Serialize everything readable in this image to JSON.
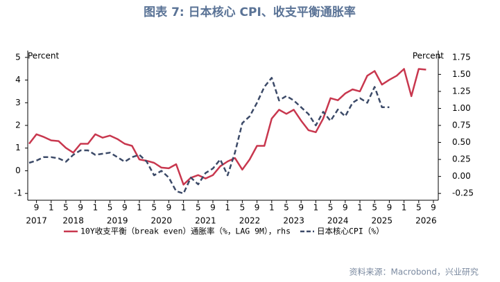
{
  "chart_data": {
    "type": "line",
    "title": "图表 7:  日本核心 CPI、收支平衡通胀率",
    "source": "资料来源：Macrobond，兴业研究",
    "ylabel": "Percent",
    "y2label": "Percent",
    "x": [
      "2017-07",
      "2017-09",
      "2017-11",
      "2018-01",
      "2018-03",
      "2018-05",
      "2018-07",
      "2018-09",
      "2018-11",
      "2019-01",
      "2019-03",
      "2019-05",
      "2019-07",
      "2019-09",
      "2019-11",
      "2020-01",
      "2020-03",
      "2020-05",
      "2020-07",
      "2020-09",
      "2020-11",
      "2021-01",
      "2021-03",
      "2021-05",
      "2021-07",
      "2021-09",
      "2021-11",
      "2022-01",
      "2022-03",
      "2022-05",
      "2022-07",
      "2022-09",
      "2022-11",
      "2023-01",
      "2023-03",
      "2023-05",
      "2023-07",
      "2023-09",
      "2023-11",
      "2024-01",
      "2024-03",
      "2024-05",
      "2024-07",
      "2024-09",
      "2024-11",
      "2025-01",
      "2025-03",
      "2025-05",
      "2025-07",
      "2025-09",
      "2025-11",
      "2026-01",
      "2026-03",
      "2026-05",
      "2026-07"
    ],
    "xticks": [
      {
        "value": "2017-09",
        "label": "9"
      },
      {
        "value": "2018-01",
        "label": "1"
      },
      {
        "value": "2018-05",
        "label": "5"
      },
      {
        "value": "2018-09",
        "label": "9"
      },
      {
        "value": "2019-01",
        "label": "1"
      },
      {
        "value": "2019-05",
        "label": "5"
      },
      {
        "value": "2019-09",
        "label": "9"
      },
      {
        "value": "2020-01",
        "label": "1"
      },
      {
        "value": "2020-05",
        "label": "5"
      },
      {
        "value": "2020-09",
        "label": "9"
      },
      {
        "value": "2021-01",
        "label": "1"
      },
      {
        "value": "2021-05",
        "label": "5"
      },
      {
        "value": "2021-09",
        "label": "9"
      },
      {
        "value": "2022-01",
        "label": "1"
      },
      {
        "value": "2022-05",
        "label": "5"
      },
      {
        "value": "2022-09",
        "label": "9"
      },
      {
        "value": "2023-01",
        "label": "1"
      },
      {
        "value": "2023-05",
        "label": "5"
      },
      {
        "value": "2023-09",
        "label": "9"
      },
      {
        "value": "2024-01",
        "label": "1"
      },
      {
        "value": "2024-05",
        "label": "5"
      },
      {
        "value": "2024-09",
        "label": "9"
      },
      {
        "value": "2025-01",
        "label": "1"
      },
      {
        "value": "2025-05",
        "label": "5"
      },
      {
        "value": "2025-09",
        "label": "9"
      },
      {
        "value": "2026-01",
        "label": "1"
      },
      {
        "value": "2026-05",
        "label": "5"
      },
      {
        "value": "2026-09",
        "label": "9"
      }
    ],
    "year_labels": [
      {
        "value": "2017-09",
        "label": "2017"
      },
      {
        "value": "2018-07",
        "label": "2018"
      },
      {
        "value": "2019-07",
        "label": "2019"
      },
      {
        "value": "2020-07",
        "label": "2020"
      },
      {
        "value": "2021-07",
        "label": "2021"
      },
      {
        "value": "2022-07",
        "label": "2022"
      },
      {
        "value": "2023-07",
        "label": "2023"
      },
      {
        "value": "2024-07",
        "label": "2024"
      },
      {
        "value": "2025-07",
        "label": "2025"
      },
      {
        "value": "2026-07",
        "label": "2026"
      }
    ],
    "ylim": [
      -1.3,
      5.3
    ],
    "yticks": [
      -1,
      0,
      1,
      2,
      3,
      4,
      5
    ],
    "y2lim": [
      -0.35,
      1.85
    ],
    "y2ticks": [
      {
        "value": -0.25,
        "label": "-0.25"
      },
      {
        "value": 0,
        "label": "0.00"
      },
      {
        "value": 0.25,
        "label": "0.25"
      },
      {
        "value": 0.5,
        "label": "0.50"
      },
      {
        "value": 0.75,
        "label": "0.75"
      },
      {
        "value": 1,
        "label": "1.00"
      },
      {
        "value": 1.25,
        "label": "1.25"
      },
      {
        "value": 1.5,
        "label": "1.50"
      },
      {
        "value": 1.75,
        "label": "1.75"
      }
    ],
    "series": [
      {
        "name": "10Y收支平衡（break even）通胀率（%，LAG 9M），rhs",
        "color": "#c8374e",
        "axis": "y2",
        "dash": false,
        "values": [
          0.48,
          0.62,
          0.58,
          0.53,
          0.52,
          0.42,
          0.35,
          0.48,
          0.48,
          0.62,
          0.57,
          0.6,
          0.55,
          0.48,
          0.45,
          0.25,
          0.23,
          0.2,
          0.13,
          0.12,
          0.18,
          -0.12,
          -0.02,
          0.02,
          -0.03,
          0.02,
          0.15,
          0.22,
          0.27,
          0.1,
          0.25,
          0.45,
          0.45,
          0.85,
          0.98,
          0.92,
          0.98,
          0.82,
          0.68,
          0.65,
          0.85,
          1.15,
          1.12,
          1.22,
          1.28,
          1.25,
          1.48,
          1.55,
          1.35,
          1.42,
          1.48,
          1.58,
          1.18,
          1.58,
          1.57
        ]
      },
      {
        "name": "日本核心CPI（%）",
        "color": "#3c4a68",
        "axis": "y",
        "dash": true,
        "values": [
          0.35,
          0.45,
          0.6,
          0.6,
          0.55,
          0.4,
          0.7,
          0.9,
          0.9,
          0.7,
          0.75,
          0.8,
          0.6,
          0.4,
          0.6,
          0.7,
          0.4,
          -0.2,
          0.0,
          -0.3,
          -0.9,
          -1.0,
          -0.3,
          -0.6,
          -0.1,
          0.1,
          0.5,
          -0.2,
          0.8,
          2.1,
          2.4,
          3.0,
          3.7,
          4.1,
          3.1,
          3.3,
          3.1,
          2.8,
          2.5,
          2.0,
          2.6,
          2.2,
          2.7,
          2.4,
          3.0,
          3.2,
          3.0,
          3.7,
          2.8,
          2.8,
          null,
          null,
          null,
          null,
          null
        ]
      }
    ]
  }
}
